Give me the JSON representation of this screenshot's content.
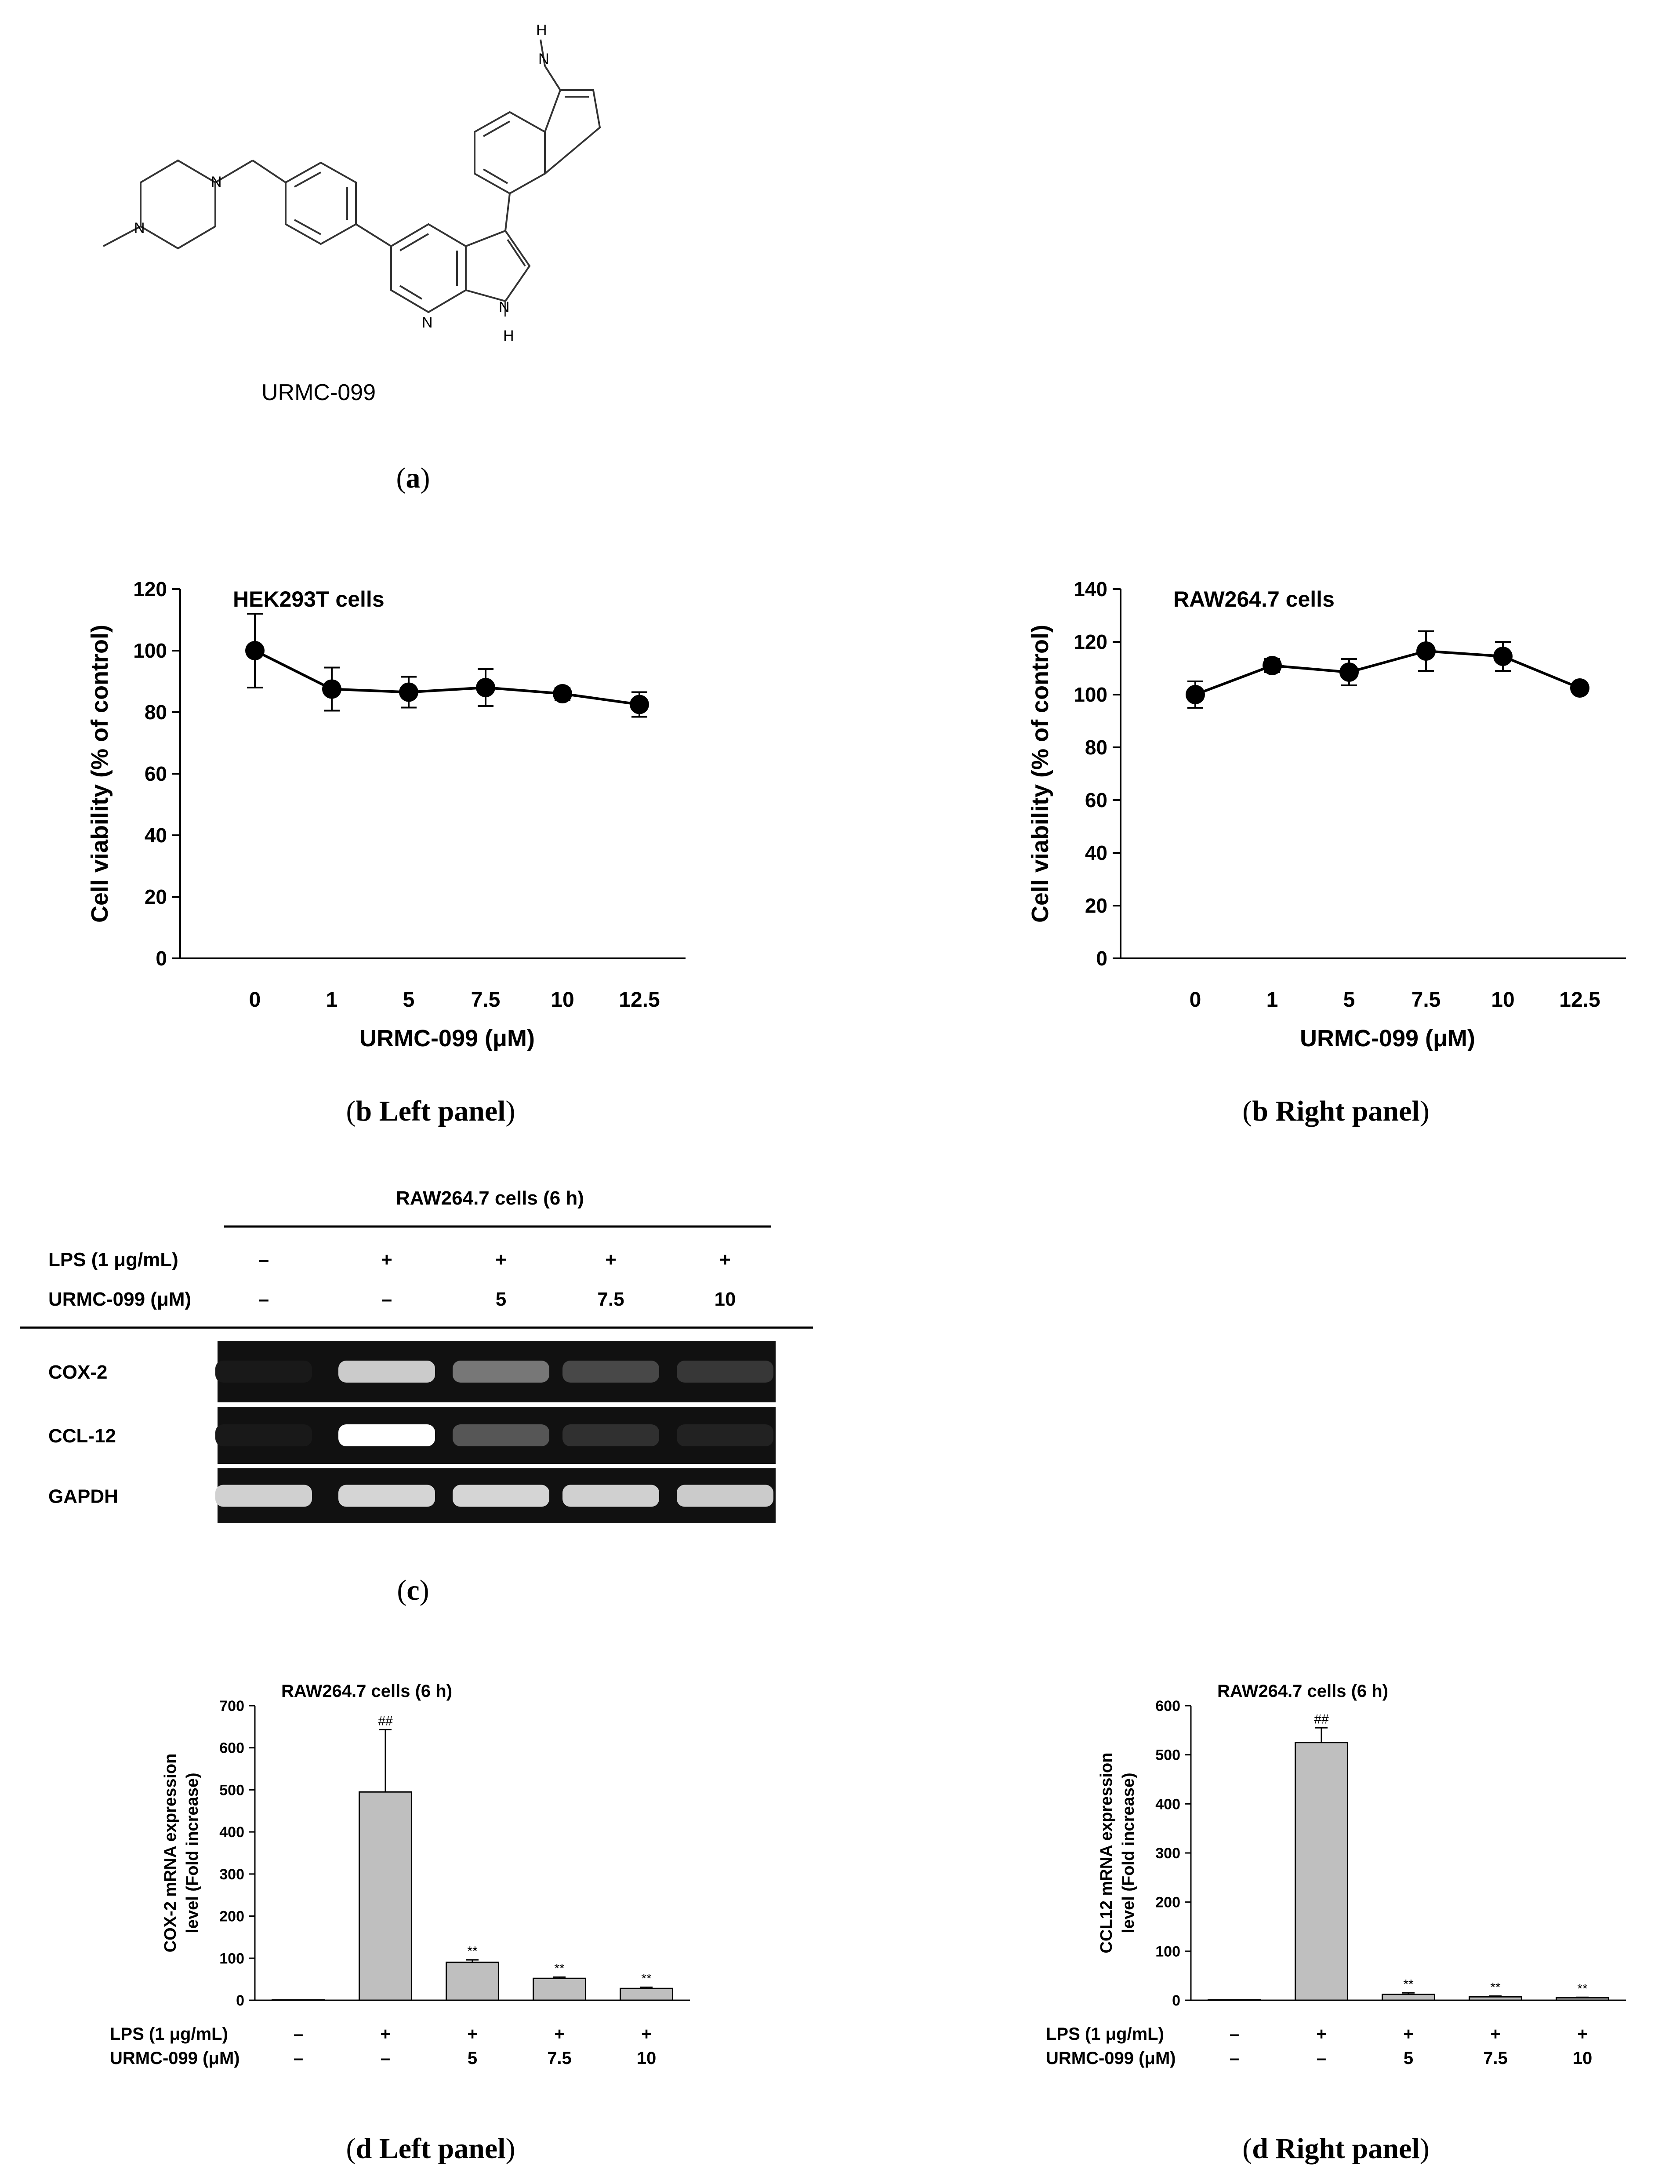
{
  "panel_a": {
    "compound_label": "URMC-099",
    "atom_labels": [
      "H",
      "N",
      "N",
      "N",
      "N",
      "N",
      "H"
    ],
    "caption_letter": "a"
  },
  "captions": {
    "a": "a",
    "b_left_letter": "b",
    "b_left_text": " Left panel",
    "b_right_letter": "b",
    "b_right_text": " Right panel",
    "c": "c",
    "d_left_letter": "d",
    "d_left_text": " Left panel",
    "d_right_letter": "d",
    "d_right_text": " Right panel"
  },
  "chart_data": [
    {
      "id": "b-left",
      "type": "line",
      "title": "HEK293T cells",
      "xlabel": "URMC-099 (μM)",
      "ylabel": "Cell viability (% of control)",
      "categories": [
        "0",
        "1",
        "5",
        "7.5",
        "10",
        "12.5"
      ],
      "values": [
        100,
        87.5,
        86.5,
        88,
        86,
        82.5
      ],
      "errors": [
        12,
        7,
        5,
        6,
        2,
        4
      ],
      "ylim": [
        0,
        120
      ],
      "yticks": [
        0,
        20,
        40,
        60,
        80,
        100,
        120
      ],
      "grid": false
    },
    {
      "id": "b-right",
      "type": "line",
      "title": "RAW264.7 cells",
      "xlabel": "URMC-099 (μM)",
      "ylabel": "Cell viability (% of control)",
      "categories": [
        "0",
        "1",
        "5",
        "7.5",
        "10",
        "12.5"
      ],
      "values": [
        100,
        111,
        108.5,
        116.5,
        114.5,
        102.5
      ],
      "errors": [
        5,
        2.5,
        5,
        7.5,
        5.5,
        1.5
      ],
      "ylim": [
        0,
        140
      ],
      "yticks": [
        0,
        20,
        40,
        60,
        80,
        100,
        120,
        140
      ],
      "grid": false
    },
    {
      "id": "d-left",
      "type": "bar",
      "title": "RAW264.7 cells (6 h)",
      "ylabel": "COX-2 mRNA expression level (Fold increase)",
      "ylabel_lines": [
        "COX-2 mRNA expression",
        "level (Fold increase)"
      ],
      "categories": [
        "1",
        "2",
        "3",
        "4",
        "5"
      ],
      "values": [
        1,
        495,
        90,
        52,
        28
      ],
      "errors": [
        0,
        148,
        6,
        3,
        3
      ],
      "annotations": [
        "",
        "##",
        "**",
        "**",
        "**"
      ],
      "ylim": [
        0,
        700
      ],
      "yticks": [
        0,
        100,
        200,
        300,
        400,
        500,
        600,
        700
      ],
      "row_labels": [
        "LPS (1 μg/mL)",
        "URMC-099 (μM)"
      ],
      "row_values": [
        [
          "–",
          "+",
          "+",
          "+",
          "+"
        ],
        [
          "–",
          "–",
          "5",
          "7.5",
          "10"
        ]
      ],
      "grid": false
    },
    {
      "id": "d-right",
      "type": "bar",
      "title": "RAW264.7 cells (6 h)",
      "ylabel": "CCL12 mRNA expression level (Fold increase)",
      "ylabel_lines": [
        "CCL12 mRNA expression",
        "level (Fold increase)"
      ],
      "categories": [
        "1",
        "2",
        "3",
        "4",
        "5"
      ],
      "values": [
        1,
        525,
        12,
        7,
        5
      ],
      "errors": [
        0,
        30,
        3,
        1.5,
        1
      ],
      "annotations": [
        "",
        "##",
        "**",
        "**",
        "**"
      ],
      "ylim": [
        0,
        600
      ],
      "yticks": [
        0,
        100,
        200,
        300,
        400,
        500,
        600
      ],
      "row_labels": [
        "LPS (1 μg/mL)",
        "URMC-099 (μM)"
      ],
      "row_values": [
        [
          "–",
          "+",
          "+",
          "+",
          "+"
        ],
        [
          "–",
          "–",
          "5",
          "7.5",
          "10"
        ]
      ],
      "grid": false
    }
  ],
  "gel": {
    "header": "RAW264.7 cells (6 h)",
    "row_labels": [
      "LPS (1 μg/mL)",
      "URMC-099 (μM)"
    ],
    "row_values": [
      [
        "–",
        "+",
        "+",
        "+",
        "+"
      ],
      [
        "–",
        "–",
        "5",
        "7.5",
        "10"
      ]
    ],
    "genes": [
      "COX-2",
      "CCL-12",
      "GAPDH"
    ],
    "band_intensity": [
      [
        0.02,
        0.78,
        0.42,
        0.22,
        0.15
      ],
      [
        0.02,
        1.0,
        0.28,
        0.12,
        0.06
      ],
      [
        0.8,
        0.82,
        0.82,
        0.8,
        0.78
      ]
    ]
  }
}
